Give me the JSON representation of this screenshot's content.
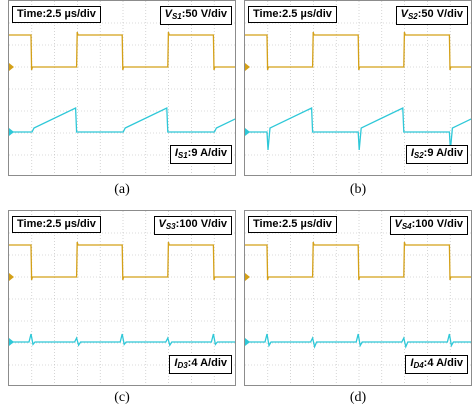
{
  "colors": {
    "voltage": "#d4a017",
    "current": "#2ec8d8",
    "grid": "#b8b8b8"
  },
  "chart_data": [
    {
      "type": "line",
      "caption": "(a)",
      "time_label": "Time:2.5 µs/div",
      "voltage": {
        "name": "V",
        "sub": "S1",
        "scale": ":50 V/div"
      },
      "current": {
        "name": "I",
        "sub": "S1",
        "scale": ":9 A/div"
      },
      "current_shape": "ramp",
      "current_spike": 0.0
    },
    {
      "type": "line",
      "caption": "(b)",
      "time_label": "Time:2.5 µs/div",
      "voltage": {
        "name": "V",
        "sub": "S2",
        "scale": ":50 V/div"
      },
      "current": {
        "name": "I",
        "sub": "S2",
        "scale": ":9 A/div"
      },
      "current_shape": "ramp",
      "current_spike": 1.0
    },
    {
      "type": "line",
      "caption": "(c)",
      "time_label": "Time:2.5 µs/div",
      "voltage": {
        "name": "V",
        "sub": "S3",
        "scale": ":100 V/div"
      },
      "current": {
        "name": "I",
        "sub": "D3",
        "scale": ":4 A/div"
      },
      "current_shape": "pulse",
      "current_spike": 0.4
    },
    {
      "type": "line",
      "caption": "(d)",
      "time_label": "Time:2.5 µs/div",
      "voltage": {
        "name": "V",
        "sub": "S4",
        "scale": ":100 V/div"
      },
      "current": {
        "name": "I",
        "sub": "D4",
        "scale": ":4 A/div"
      },
      "current_shape": "pulse",
      "current_spike": 0.6
    }
  ]
}
